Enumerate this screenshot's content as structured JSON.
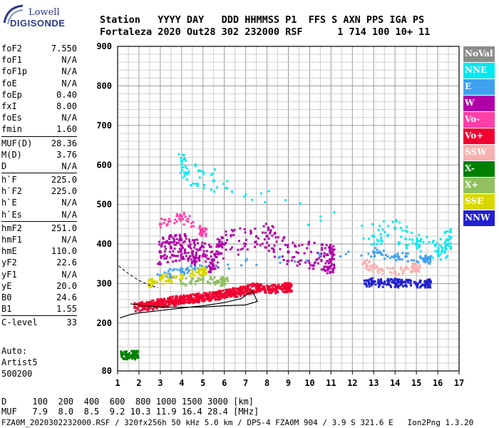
{
  "logo": {
    "line1": "Lowell",
    "line2": "DIGISONDE"
  },
  "header": {
    "row1": "Station   YYYY DAY   DDD HHMMSS P1  FFS S AXN PPS IGA PS",
    "row2": "Fortaleza 2020 Out28 302 232000 RSF      1 714 100 10+ 11"
  },
  "params": [
    [
      {
        "k": "foF2",
        "v": "7.550"
      },
      {
        "k": "foF1",
        "v": "N/A"
      },
      {
        "k": "foF1p",
        "v": "N/A"
      },
      {
        "k": "foE",
        "v": "N/A"
      },
      {
        "k": "foEp",
        "v": "0.40"
      },
      {
        "k": "fxI",
        "v": "8.00"
      },
      {
        "k": "foEs",
        "v": "N/A"
      },
      {
        "k": "fmin",
        "v": "1.60"
      }
    ],
    [
      {
        "k": "MUF(D)",
        "v": "28.36"
      },
      {
        "k": "M(D)",
        "v": "3.76"
      },
      {
        "k": "D",
        "v": "N/A"
      }
    ],
    [
      {
        "k": "h`F",
        "v": "225.0"
      },
      {
        "k": "h`F2",
        "v": "225.0"
      },
      {
        "k": "h`E",
        "v": "N/A"
      },
      {
        "k": "h`Es",
        "v": "N/A"
      }
    ],
    [
      {
        "k": "hmF2",
        "v": "251.0"
      },
      {
        "k": "hmF1",
        "v": "N/A"
      },
      {
        "k": "hmE",
        "v": "110.0"
      },
      {
        "k": "yF2",
        "v": "22.6"
      },
      {
        "k": "yF1",
        "v": "N/A"
      },
      {
        "k": "yE",
        "v": "20.0"
      },
      {
        "k": "B0",
        "v": "24.6"
      },
      {
        "k": "B1",
        "v": "1.55"
      }
    ],
    [
      {
        "k": "C-level",
        "v": "33"
      }
    ]
  ],
  "auto": {
    "l1": "Auto:",
    "l2": "Artist5",
    "l3": "500200"
  },
  "legend": [
    {
      "label": "NoVal",
      "color": "#8c8c8c"
    },
    {
      "label": "NNE",
      "color": "#00e8f0"
    },
    {
      "label": "E",
      "color": "#40a0f0"
    },
    {
      "label": "W",
      "color": "#b000a8"
    },
    {
      "label": "Vo-",
      "color": "#ff40a8"
    },
    {
      "label": "Vo+",
      "color": "#f00030"
    },
    {
      "label": "SSW",
      "color": "#f8b0b0"
    },
    {
      "label": "X-",
      "color": "#008000"
    },
    {
      "label": "X+",
      "color": "#90c060"
    },
    {
      "label": "SSE",
      "color": "#d8d800"
    },
    {
      "label": "NNW",
      "color": "#2020d0"
    }
  ],
  "chart_data": {
    "type": "scatter",
    "x_ticks": [
      1,
      2,
      3,
      4,
      5,
      6,
      7,
      8,
      9,
      10,
      11,
      12,
      13,
      14,
      15,
      16,
      17
    ],
    "y_ticks": [
      80,
      200,
      300,
      400,
      500,
      600,
      700,
      800,
      900
    ],
    "xlim": [
      1,
      17
    ],
    "ylim": [
      80,
      900
    ],
    "grid": true,
    "series": [
      {
        "name": "Vo+",
        "points": [
          [
            1.8,
            240
          ],
          [
            2.5,
            245
          ],
          [
            3.0,
            250
          ],
          [
            3.5,
            255
          ],
          [
            4.0,
            258
          ],
          [
            4.5,
            262
          ],
          [
            5.0,
            265
          ],
          [
            5.5,
            268
          ],
          [
            6.0,
            272
          ],
          [
            6.5,
            278
          ],
          [
            7.0,
            282
          ],
          [
            7.5,
            290
          ],
          [
            8.2,
            285
          ],
          [
            9.0,
            290
          ]
        ]
      },
      {
        "name": "W",
        "points": [
          [
            3.0,
            380
          ],
          [
            3.5,
            390
          ],
          [
            4.0,
            395
          ],
          [
            4.5,
            380
          ],
          [
            5.0,
            370
          ],
          [
            5.5,
            360
          ],
          [
            6.0,
            400
          ],
          [
            8.0,
            420
          ],
          [
            9.0,
            380
          ],
          [
            10.5,
            370
          ],
          [
            11.0,
            360
          ]
        ]
      },
      {
        "name": "NNE",
        "points": [
          [
            4.0,
            610
          ],
          [
            4.2,
            580
          ],
          [
            5.5,
            560
          ],
          [
            13.0,
            420
          ],
          [
            14.0,
            440
          ],
          [
            15.0,
            400
          ],
          [
            16.0,
            380
          ],
          [
            16.5,
            410
          ]
        ]
      },
      {
        "name": "E",
        "points": [
          [
            3.0,
            320
          ],
          [
            4.0,
            330
          ],
          [
            5.0,
            340
          ],
          [
            13.0,
            380
          ],
          [
            14.0,
            370
          ],
          [
            15.5,
            360
          ]
        ]
      },
      {
        "name": "NNW",
        "points": [
          [
            12.6,
            300
          ],
          [
            13.0,
            305
          ],
          [
            13.5,
            300
          ],
          [
            14.0,
            302
          ],
          [
            14.3,
            298
          ],
          [
            15.0,
            300
          ],
          [
            15.5,
            300
          ]
        ]
      },
      {
        "name": "SSE",
        "points": [
          [
            2.5,
            300
          ],
          [
            3.0,
            310
          ],
          [
            4.0,
            320
          ],
          [
            5.0,
            330
          ]
        ]
      },
      {
        "name": "X+",
        "points": [
          [
            4.0,
            300
          ],
          [
            5.0,
            310
          ],
          [
            6.0,
            305
          ]
        ]
      },
      {
        "name": "SSW",
        "points": [
          [
            12.5,
            350
          ],
          [
            13.0,
            340
          ],
          [
            14.0,
            330
          ],
          [
            15.0,
            340
          ]
        ]
      },
      {
        "name": "X-",
        "points": [
          [
            1.2,
            120
          ],
          [
            1.5,
            120
          ],
          [
            1.8,
            120
          ]
        ]
      },
      {
        "name": "Vo-",
        "points": [
          [
            3.0,
            450
          ],
          [
            4.0,
            470
          ],
          [
            5.0,
            430
          ]
        ]
      }
    ],
    "profile_curve": [
      [
        1.1,
        213
      ],
      [
        1.6,
        222
      ],
      [
        2.0,
        226
      ],
      [
        3.0,
        232
      ],
      [
        4.0,
        238
      ],
      [
        5.0,
        244
      ],
      [
        6.0,
        252
      ],
      [
        6.8,
        262
      ],
      [
        7.3,
        282
      ],
      [
        7.55,
        255
      ],
      [
        7.0,
        246
      ],
      [
        6.0,
        244
      ],
      [
        5.0,
        241
      ],
      [
        4.0,
        240
      ],
      [
        3.0,
        241
      ],
      [
        2.0,
        245
      ],
      [
        1.6,
        249
      ]
    ]
  },
  "bottom": {
    "row1": "D     100  200  400  600  800 1000 1500 3000 [km]",
    "row2": "MUF   7.9  8.0  8.5  9.2 10.3 11.9 16.4 28.4 [MHz]"
  },
  "footer": "FZA0M_2020302232000.RSF / 320fx256h 50 kHz 5.0 km / DPS-4 FZA0M 904 / 3.9 S 321.6 E   Ion2Png 1.3.20"
}
